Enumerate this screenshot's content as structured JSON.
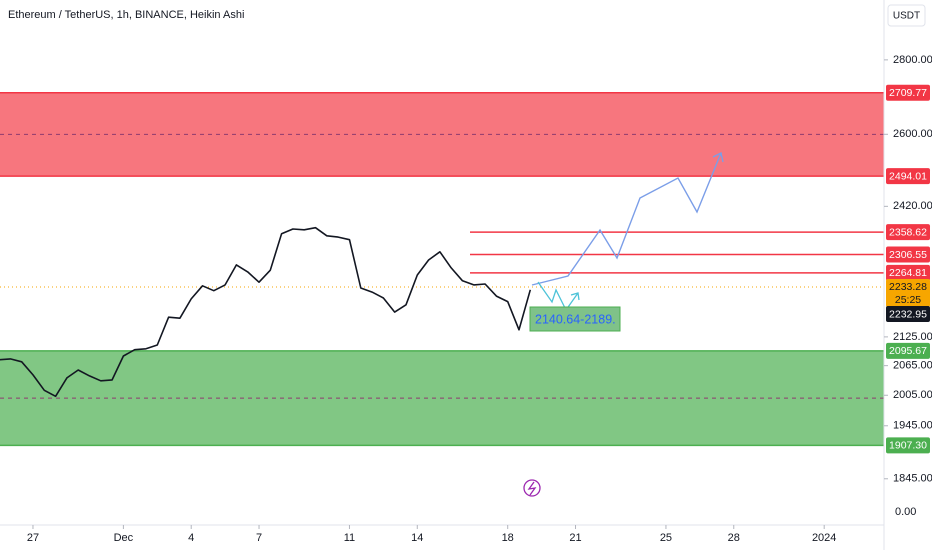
{
  "chart_data": {
    "type": "line",
    "title": "Ethereum / TetherUS, 1h, BINANCE, Heikin Ashi",
    "currency": "USDT",
    "log_scale": true,
    "x": [
      "2023-11-25T12:00",
      "2023-11-26T00:00",
      "2023-11-26T12:00",
      "2023-11-27T00:00",
      "2023-11-27T12:00",
      "2023-11-28T00:00",
      "2023-11-28T12:00",
      "2023-11-29T00:00",
      "2023-11-29T12:00",
      "2023-11-30T00:00",
      "2023-11-30T12:00",
      "2023-12-01T00:00",
      "2023-12-01T12:00",
      "2023-12-02T00:00",
      "2023-12-02T12:00",
      "2023-12-03T00:00",
      "2023-12-03T12:00",
      "2023-12-04T00:00",
      "2023-12-04T12:00",
      "2023-12-05T00:00",
      "2023-12-05T12:00",
      "2023-12-06T00:00",
      "2023-12-06T12:00",
      "2023-12-07T00:00",
      "2023-12-07T12:00",
      "2023-12-08T00:00",
      "2023-12-08T12:00",
      "2023-12-09T00:00",
      "2023-12-09T12:00",
      "2023-12-10T00:00",
      "2023-12-10T12:00",
      "2023-12-11T00:00",
      "2023-12-11T12:00",
      "2023-12-12T00:00",
      "2023-12-12T12:00",
      "2023-12-13T00:00",
      "2023-12-13T12:00",
      "2023-12-14T00:00",
      "2023-12-14T12:00",
      "2023-12-15T00:00",
      "2023-12-15T12:00",
      "2023-12-16T00:00",
      "2023-12-16T12:00",
      "2023-12-17T00:00",
      "2023-12-17T12:00",
      "2023-12-18T00:00",
      "2023-12-18T12:00",
      "2023-12-19T00:00"
    ],
    "series": [
      {
        "color": "#131722",
        "values": [
          2077,
          2079,
          2073,
          2046,
          2015,
          2003,
          2040,
          2056,
          2044,
          2034,
          2036,
          2085,
          2098,
          2100,
          2108,
          2167,
          2165,
          2207,
          2236,
          2225,
          2238,
          2283,
          2267,
          2244,
          2271,
          2355,
          2366,
          2364,
          2369,
          2350,
          2347,
          2341,
          2231,
          2222,
          2209,
          2178,
          2194,
          2260,
          2294,
          2313,
          2276,
          2247,
          2238,
          2240,
          2213,
          2201,
          2140,
          2227
        ]
      }
    ],
    "xlim": [
      "2023-11-25T13:00",
      "2024-01-03T15:30"
    ],
    "xticks": [
      {
        "value": "2023-11-27T00:00",
        "label": "27"
      },
      {
        "value": "2023-12-01T00:00",
        "label": "Dec"
      },
      {
        "value": "2023-12-04T00:00",
        "label": "4"
      },
      {
        "value": "2023-12-07T00:00",
        "label": "7"
      },
      {
        "value": "2023-12-11T00:00",
        "label": "11"
      },
      {
        "value": "2023-12-14T00:00",
        "label": "14"
      },
      {
        "value": "2023-12-18T00:00",
        "label": "18"
      },
      {
        "value": "2023-12-21T00:00",
        "label": "21"
      },
      {
        "value": "2023-12-25T00:00",
        "label": "25"
      },
      {
        "value": "2023-12-28T00:00",
        "label": "28"
      },
      {
        "value": "2024-01-01T00:00",
        "label": "2024"
      }
    ],
    "ylim": [
      1762,
      2972
    ],
    "yticks": [
      {
        "value": 2800,
        "label": "2800.00"
      },
      {
        "value": 2600,
        "label": "2600.00"
      },
      {
        "value": 2420,
        "label": "2420.00"
      },
      {
        "value": 2125,
        "label": "2125.00"
      },
      {
        "value": 2065,
        "label": "2065.00"
      },
      {
        "value": 2005,
        "label": "2005.00"
      },
      {
        "value": 1945,
        "label": "1945.00"
      },
      {
        "value": 1845,
        "label": "1845.00"
      }
    ],
    "bottom_label": "0.00",
    "zones": [
      {
        "top": 2709.77,
        "bottom": 2494.01,
        "color": "#f7767e",
        "border": "#f23645"
      },
      {
        "top": 2095.67,
        "bottom": {
          "value": 1907.3,
          "label": "1907.30"
        },
        "color": "#81c784",
        "border": "#4caf50"
      }
    ],
    "levels": {
      "color": "#f23645",
      "values": [
        2358.62,
        2306.55,
        2264.81
      ]
    },
    "current_price": {
      "value": 2233.28,
      "countdown": "25:25",
      "color": "#f7a600",
      "close": 2232.95
    },
    "annotation": "2140.64-2189."
  }
}
